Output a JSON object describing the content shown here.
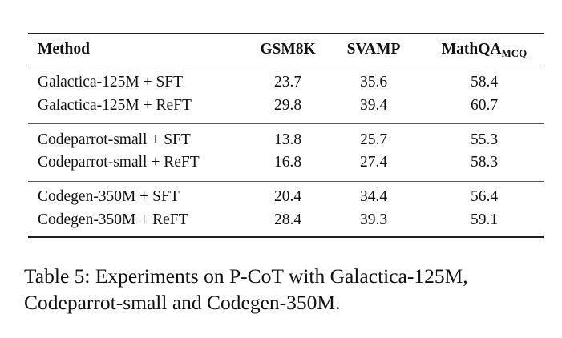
{
  "table": {
    "headers": {
      "method": "Method",
      "gsm8k": "GSM8K",
      "svamp": "SVAMP",
      "mathqa": "MathQA",
      "mathqa_sub": "MCQ"
    },
    "rows": [
      {
        "method": "Galactica-125M + SFT",
        "gsm8k": "23.7",
        "svamp": "35.6",
        "mathqa": "58.4"
      },
      {
        "method": "Galactica-125M + ReFT",
        "gsm8k": "29.8",
        "svamp": "39.4",
        "mathqa": "60.7"
      },
      {
        "method": "Codeparrot-small + SFT",
        "gsm8k": "13.8",
        "svamp": "25.7",
        "mathqa": "55.3"
      },
      {
        "method": "Codeparrot-small + ReFT",
        "gsm8k": "16.8",
        "svamp": "27.4",
        "mathqa": "58.3"
      },
      {
        "method": "Codegen-350M + SFT",
        "gsm8k": "20.4",
        "svamp": "34.4",
        "mathqa": "56.4"
      },
      {
        "method": "Codegen-350M + ReFT",
        "gsm8k": "28.4",
        "svamp": "39.3",
        "mathqa": "59.1"
      }
    ]
  },
  "caption": "Table 5: Experiments on P-CoT with Galactica-125M, Codeparrot-small and Codegen-350M."
}
